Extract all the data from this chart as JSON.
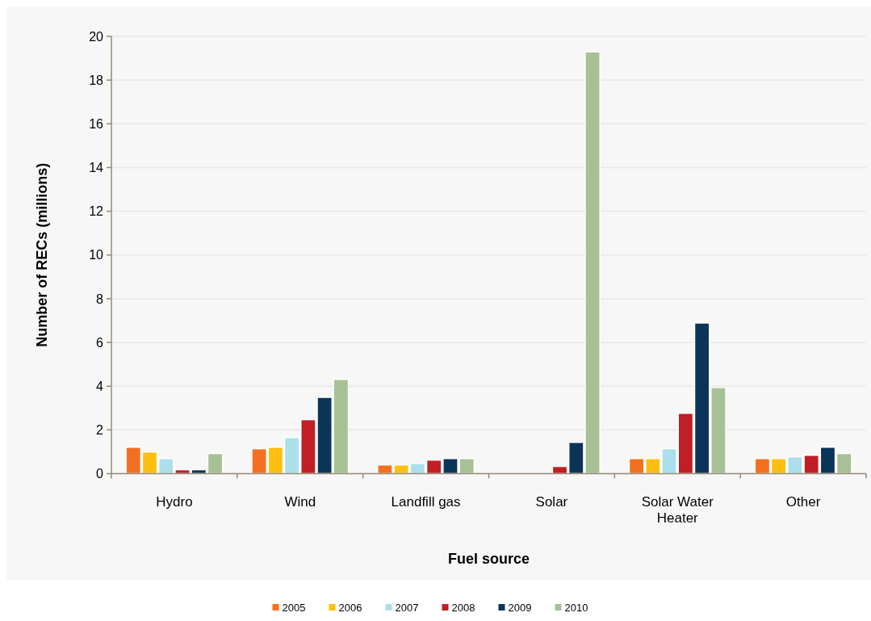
{
  "chart_data": {
    "type": "bar",
    "xlabel": "Fuel source",
    "ylabel": "Number of RECs (millions)",
    "categories": [
      "Hydro",
      "Wind",
      "Landfill gas",
      "Solar",
      "Solar Water Heater",
      "Other"
    ],
    "series": [
      {
        "name": "2005",
        "color": "#f37021",
        "values": [
          1.21,
          1.14,
          0.4,
          0,
          0.69,
          0.69
        ]
      },
      {
        "name": "2006",
        "color": "#fdc010",
        "values": [
          0.99,
          1.21,
          0.4,
          0,
          0.69,
          0.69
        ]
      },
      {
        "name": "2007",
        "color": "#abdfeb",
        "values": [
          0.69,
          1.65,
          0.47,
          0,
          1.14,
          0.77
        ]
      },
      {
        "name": "2008",
        "color": "#c01f25",
        "values": [
          0.18,
          2.47,
          0.62,
          0.33,
          2.76,
          0.84
        ]
      },
      {
        "name": "2009",
        "color": "#0b3558",
        "values": [
          0.18,
          3.49,
          0.69,
          1.43,
          6.89,
          1.21
        ]
      },
      {
        "name": "2010",
        "color": "#a7c195",
        "values": [
          0.92,
          4.31,
          0.69,
          19.29,
          3.94,
          0.92
        ]
      }
    ],
    "ylim": [
      0,
      20
    ],
    "yticks": [
      0,
      2,
      4,
      6,
      8,
      10,
      12,
      14,
      16,
      18,
      20
    ],
    "grid": "y",
    "legend": "bottom"
  }
}
